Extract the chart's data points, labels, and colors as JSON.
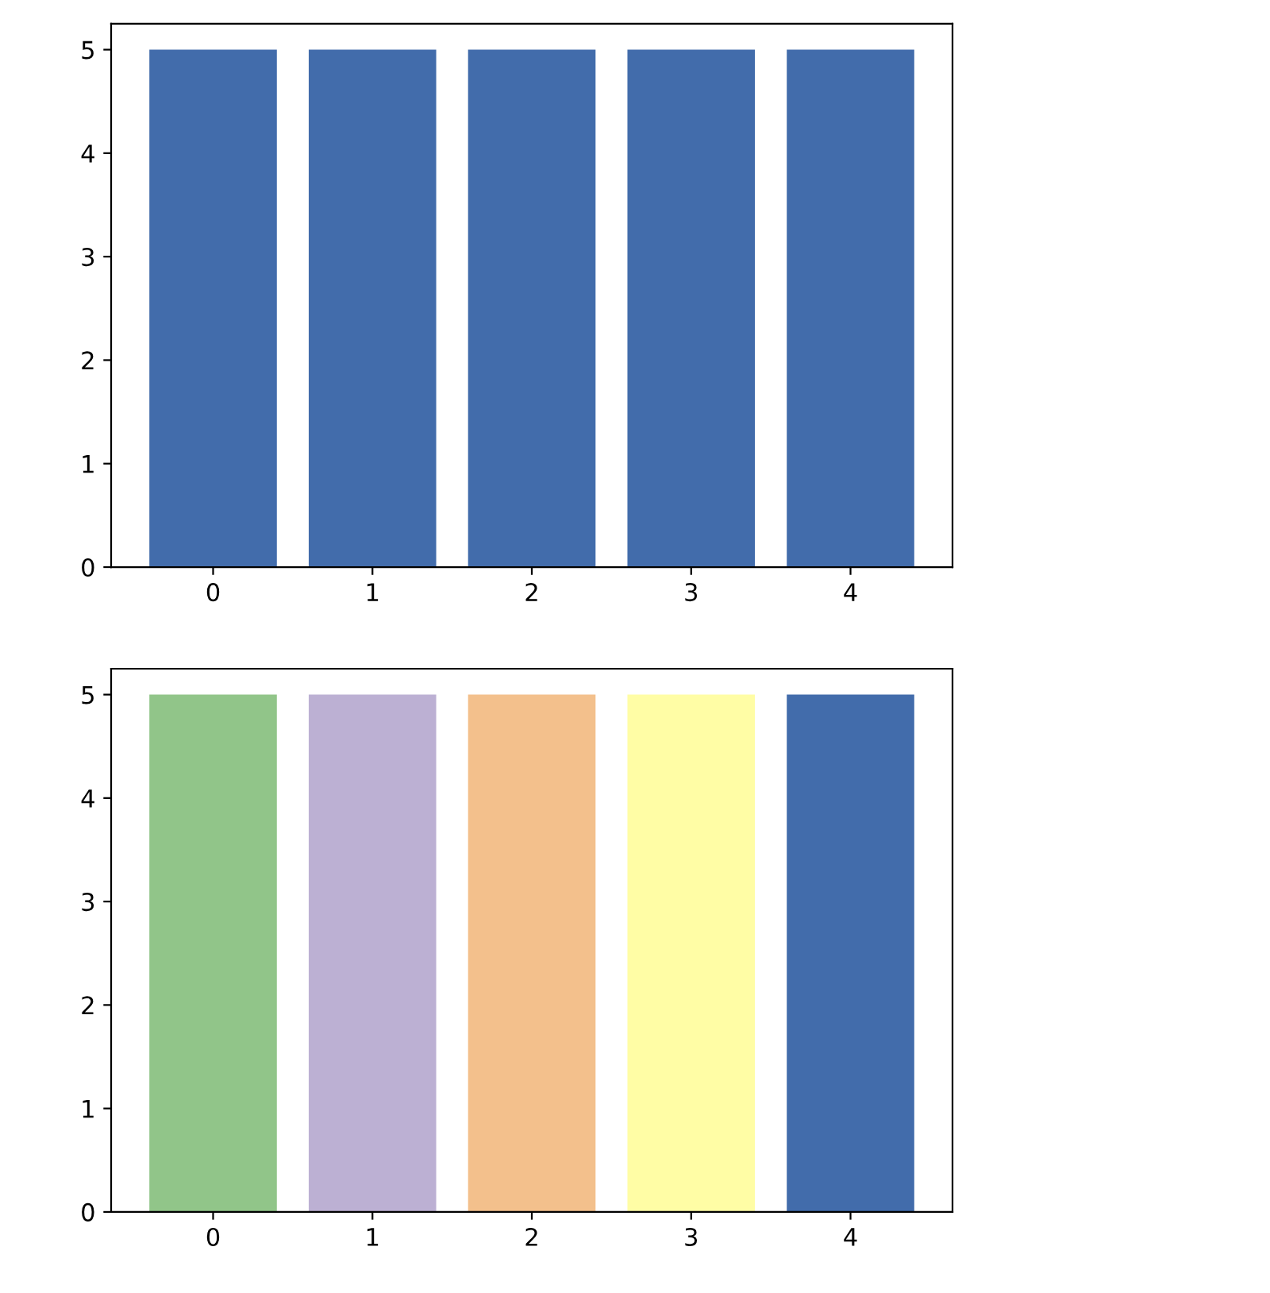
{
  "chart_data": [
    {
      "type": "bar",
      "categories": [
        "0",
        "1",
        "2",
        "3",
        "4"
      ],
      "values": [
        5,
        5,
        5,
        5,
        5
      ],
      "color": "#426cab",
      "ylim": [
        0,
        5.25
      ],
      "yticks": [
        0,
        1,
        2,
        3,
        4,
        5
      ]
    },
    {
      "type": "bar",
      "categories": [
        "0",
        "1",
        "2",
        "3",
        "4"
      ],
      "values": [
        5,
        5,
        5,
        5,
        5
      ],
      "colors": [
        "#91c589",
        "#bcb0d3",
        "#f3c08c",
        "#fffda5",
        "#426cab"
      ],
      "ylim": [
        0,
        5.25
      ],
      "yticks": [
        0,
        1,
        2,
        3,
        4,
        5
      ]
    }
  ]
}
